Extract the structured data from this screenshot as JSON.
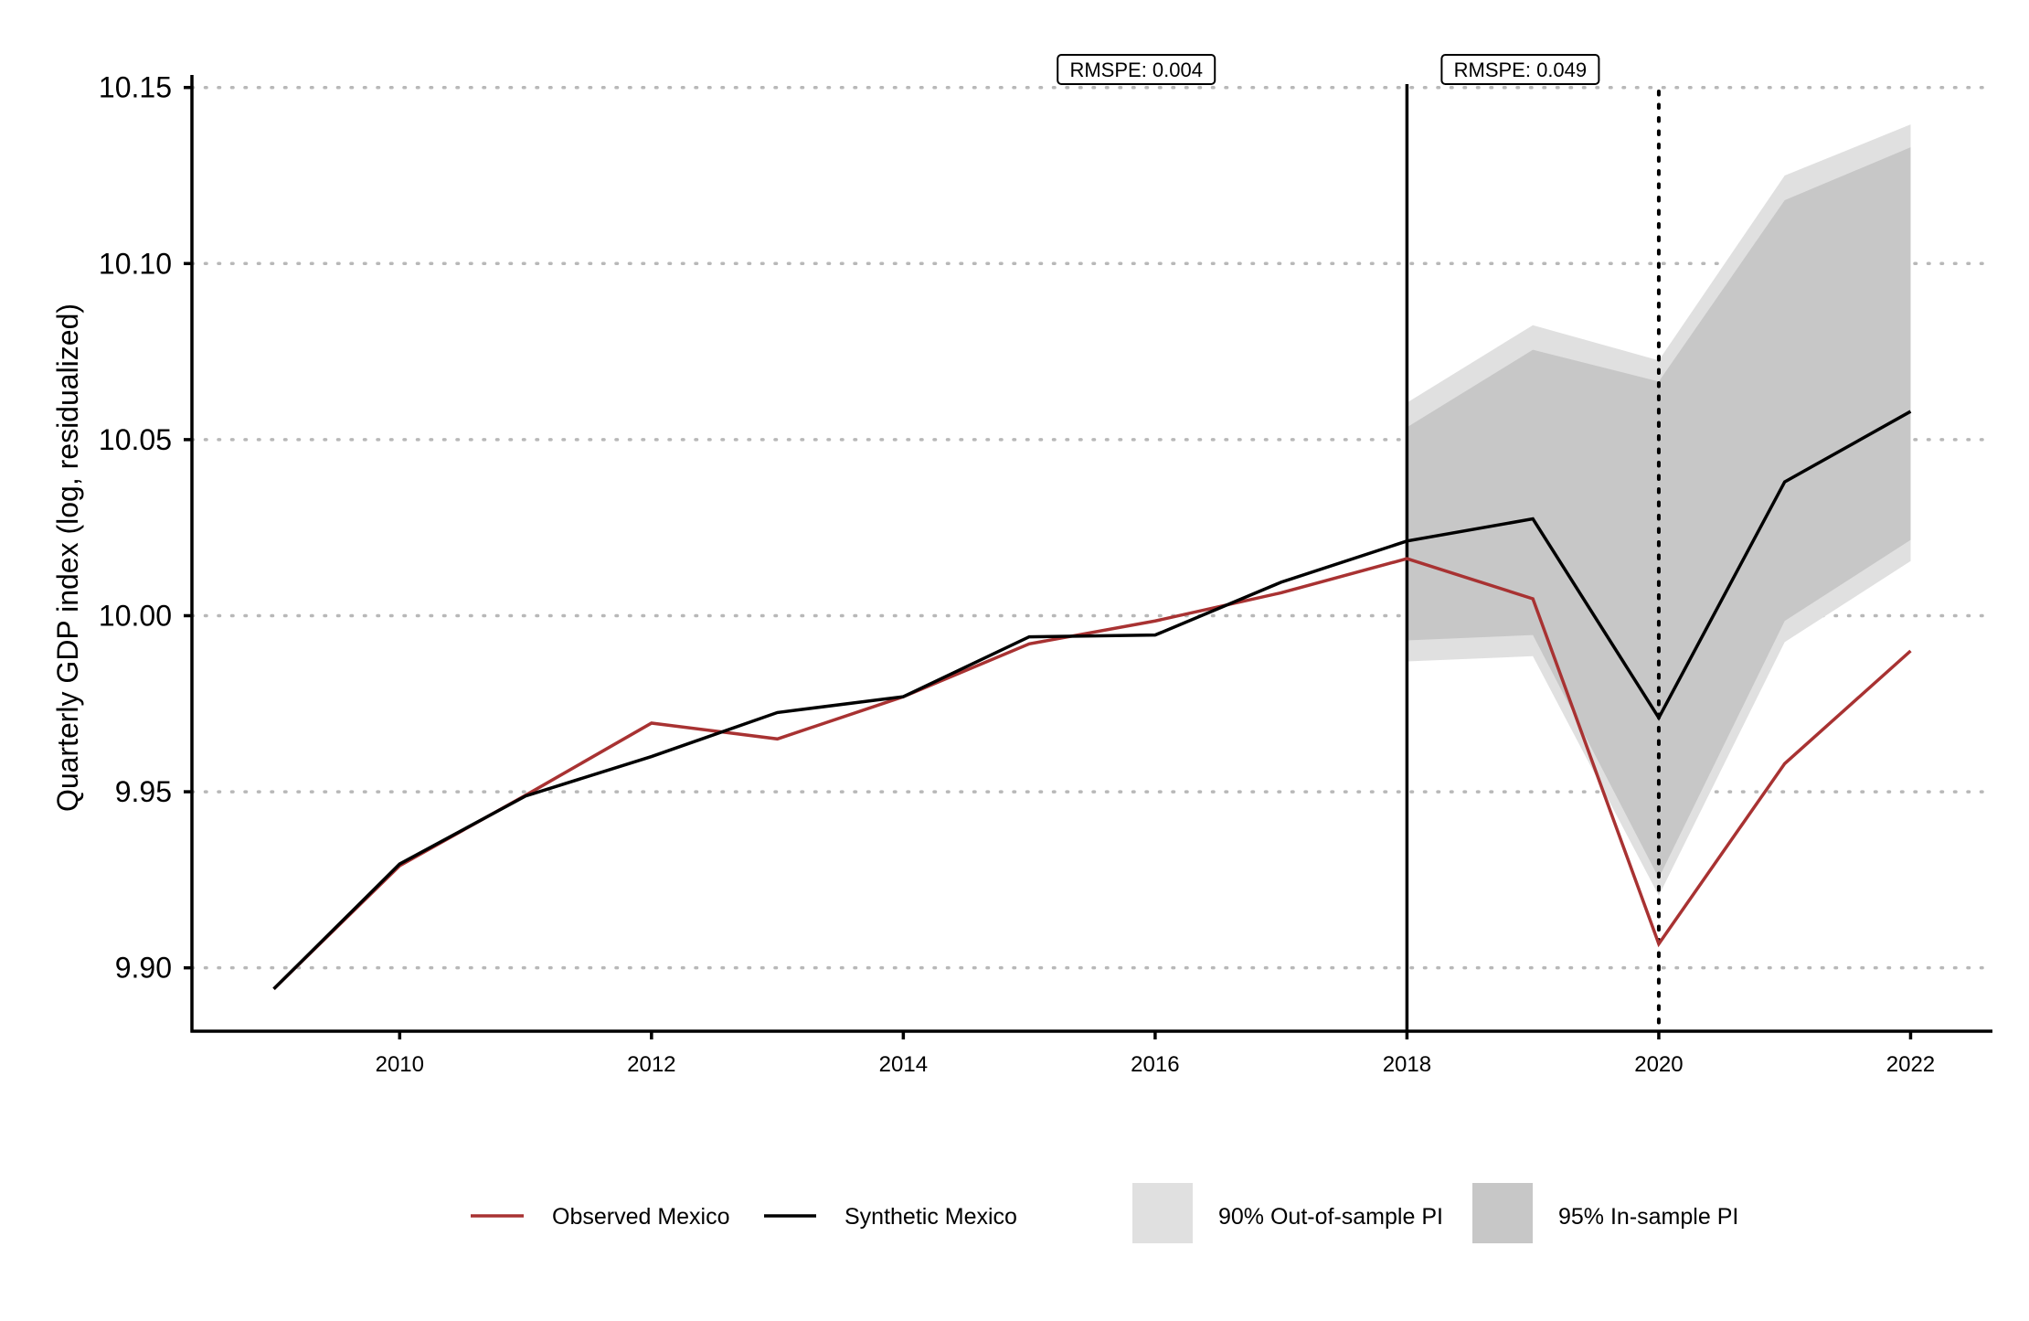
{
  "chart_data": {
    "type": "line",
    "ylabel": "Quarterly GDP index (log, residualized)",
    "xlabel": "",
    "xlim": [
      2008.35,
      2022.65
    ],
    "ylim": [
      9.882,
      10.152
    ],
    "x_ticks": [
      2010,
      2012,
      2014,
      2016,
      2018,
      2020,
      2022
    ],
    "x_tick_labels": [
      "2010",
      "2012",
      "2014",
      "2016",
      "2018",
      "2020",
      "2022"
    ],
    "y_ticks": [
      9.9,
      9.95,
      10.0,
      10.05,
      10.1,
      10.15
    ],
    "y_tick_labels": [
      "9.90",
      "9.95",
      "10.00",
      "10.05",
      "10.10",
      "10.15"
    ],
    "grid": "horizontal dotted",
    "treatment_line_x": 2018,
    "event_line_x": 2020,
    "annotations": [
      {
        "text": "RMSPE: 0.004",
        "x": 2015.85
      },
      {
        "text": "RMSPE: 0.049",
        "x": 2018.9
      }
    ],
    "series": [
      {
        "name": "Observed Mexico",
        "color": "#a83232",
        "x": [
          2009,
          2010,
          2011,
          2012,
          2013,
          2014,
          2015,
          2016,
          2017,
          2018,
          2019,
          2020,
          2021,
          2022
        ],
        "values": [
          9.894,
          9.929,
          9.949,
          9.9695,
          9.965,
          9.977,
          9.992,
          9.9985,
          10.0065,
          10.0162,
          10.0048,
          9.9068,
          9.958,
          9.99
        ]
      },
      {
        "name": "Synthetic Mexico",
        "color": "#000000",
        "x": [
          2009,
          2010,
          2011,
          2012,
          2013,
          2014,
          2015,
          2016,
          2017,
          2018,
          2019,
          2020,
          2021,
          2022
        ],
        "values": [
          9.894,
          9.9295,
          9.9488,
          9.96,
          9.9725,
          9.977,
          9.994,
          9.9945,
          10.0095,
          10.0212,
          10.0275,
          9.971,
          10.038,
          10.058
        ]
      }
    ],
    "bands": [
      {
        "name": "90% Out-of-sample PI",
        "color": "#e0e0e0",
        "x": [
          2018,
          2019,
          2020,
          2021,
          2022
        ],
        "lower": [
          9.987,
          9.9885,
          9.9205,
          9.9925,
          10.0155
        ],
        "upper": [
          10.0605,
          10.0825,
          10.0725,
          10.125,
          10.1395
        ]
      },
      {
        "name": "95% In-sample PI",
        "color": "#c7c7c7",
        "x": [
          2018,
          2019,
          2020,
          2021,
          2022
        ],
        "lower": [
          9.993,
          9.9945,
          9.9255,
          9.9985,
          10.0215
        ],
        "upper": [
          10.0535,
          10.0755,
          10.0665,
          10.118,
          10.133
        ]
      }
    ]
  },
  "legend": {
    "observed_label": "Observed Mexico",
    "synthetic_label": "Synthetic Mexico",
    "oos_label": "90% Out-of-sample PI",
    "ins_label": "95% In-sample PI"
  }
}
